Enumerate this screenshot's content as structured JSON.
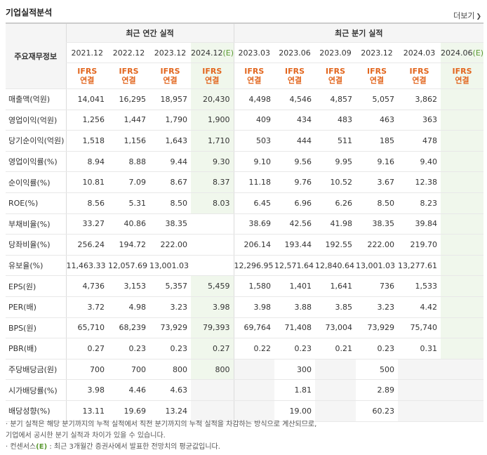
{
  "title": "기업실적분석",
  "more_label": "더보기",
  "header": {
    "left_label": "주요재무정보",
    "annual_group": "최근 연간 실적",
    "quarter_group": "최근 분기 실적",
    "annual_periods": [
      "2021.12",
      "2022.12",
      "2023.12",
      "2024.12"
    ],
    "quarter_periods": [
      "2023.03",
      "2023.06",
      "2023.09",
      "2023.12",
      "2024.03",
      "2024.06"
    ],
    "estimate_mark": "(E)",
    "ifrs_top": "IFRS",
    "ifrs_bottom": "연결"
  },
  "rows": [
    {
      "label": "매출액(억원)",
      "annual": [
        "14,041",
        "16,295",
        "18,957",
        "20,430"
      ],
      "quarter": [
        "4,498",
        "4,546",
        "4,857",
        "5,057",
        "3,862",
        ""
      ]
    },
    {
      "label": "영업이익(억원)",
      "annual": [
        "1,256",
        "1,447",
        "1,790",
        "1,900"
      ],
      "quarter": [
        "409",
        "434",
        "483",
        "463",
        "363",
        ""
      ]
    },
    {
      "label": "당기순이익(억원)",
      "annual": [
        "1,518",
        "1,156",
        "1,643",
        "1,710"
      ],
      "quarter": [
        "503",
        "444",
        "511",
        "185",
        "478",
        ""
      ]
    },
    {
      "label": "영업이익률(%)",
      "annual": [
        "8.94",
        "8.88",
        "9.44",
        "9.30"
      ],
      "quarter": [
        "9.10",
        "9.56",
        "9.95",
        "9.16",
        "9.40",
        ""
      ]
    },
    {
      "label": "순이익률(%)",
      "annual": [
        "10.81",
        "7.09",
        "8.67",
        "8.37"
      ],
      "quarter": [
        "11.18",
        "9.76",
        "10.52",
        "3.67",
        "12.38",
        ""
      ]
    },
    {
      "label": "ROE(%)",
      "annual": [
        "8.56",
        "5.31",
        "8.50",
        "8.03"
      ],
      "quarter": [
        "6.45",
        "6.96",
        "6.26",
        "8.50",
        "8.23",
        ""
      ]
    },
    {
      "label": "부채비율(%)",
      "annual": [
        "33.27",
        "40.86",
        "38.35",
        ""
      ],
      "quarter": [
        "38.69",
        "42.56",
        "41.98",
        "38.35",
        "39.84",
        ""
      ]
    },
    {
      "label": "당좌비율(%)",
      "annual": [
        "256.24",
        "194.72",
        "222.00",
        ""
      ],
      "quarter": [
        "206.14",
        "193.44",
        "192.55",
        "222.00",
        "219.70",
        ""
      ]
    },
    {
      "label": "유보율(%)",
      "annual": [
        "11,463.33",
        "12,057.69",
        "13,001.03",
        ""
      ],
      "quarter": [
        "12,296.95",
        "12,571.64",
        "12,840.64",
        "13,001.03",
        "13,277.61",
        ""
      ]
    },
    {
      "label": "EPS(원)",
      "annual": [
        "4,736",
        "3,153",
        "5,357",
        "5,459"
      ],
      "quarter": [
        "1,580",
        "1,401",
        "1,641",
        "736",
        "1,533",
        ""
      ]
    },
    {
      "label": "PER(배)",
      "annual": [
        "3.72",
        "4.98",
        "3.23",
        "3.98"
      ],
      "quarter": [
        "3.98",
        "3.88",
        "3.85",
        "3.23",
        "4.42",
        ""
      ]
    },
    {
      "label": "BPS(원)",
      "annual": [
        "65,710",
        "68,239",
        "73,929",
        "79,393"
      ],
      "quarter": [
        "69,764",
        "71,408",
        "73,004",
        "73,929",
        "75,740",
        ""
      ]
    },
    {
      "label": "PBR(배)",
      "annual": [
        "0.27",
        "0.23",
        "0.23",
        "0.27"
      ],
      "quarter": [
        "0.22",
        "0.23",
        "0.21",
        "0.23",
        "0.31",
        ""
      ]
    },
    {
      "label": "주당배당금(원)",
      "annual": [
        "700",
        "700",
        "800",
        "800"
      ],
      "quarter": [
        "",
        "300",
        "",
        "500",
        "",
        ""
      ]
    },
    {
      "label": "시가배당률(%)",
      "annual": [
        "3.98",
        "4.46",
        "4.63",
        ""
      ],
      "quarter": [
        "",
        "1.81",
        "",
        "2.89",
        "",
        ""
      ]
    },
    {
      "label": "배당성향(%)",
      "annual": [
        "13.11",
        "19.69",
        "13.24",
        ""
      ],
      "quarter": [
        "",
        "19.00",
        "",
        "60.23",
        "",
        ""
      ]
    }
  ],
  "notes": [
    "· 분기 실적은 해당 분기까지의 누적 실적에서 직전 분기까지의 누적 실적을 차감하는 방식으로 계산되므로,",
    "  기업에서 공시한 분기 실적과 차이가 있을 수 있습니다.",
    "· 컨센서스(E) : 최근 3개월간 증권사에서 발표한 전망치의 평균값입니다."
  ]
}
